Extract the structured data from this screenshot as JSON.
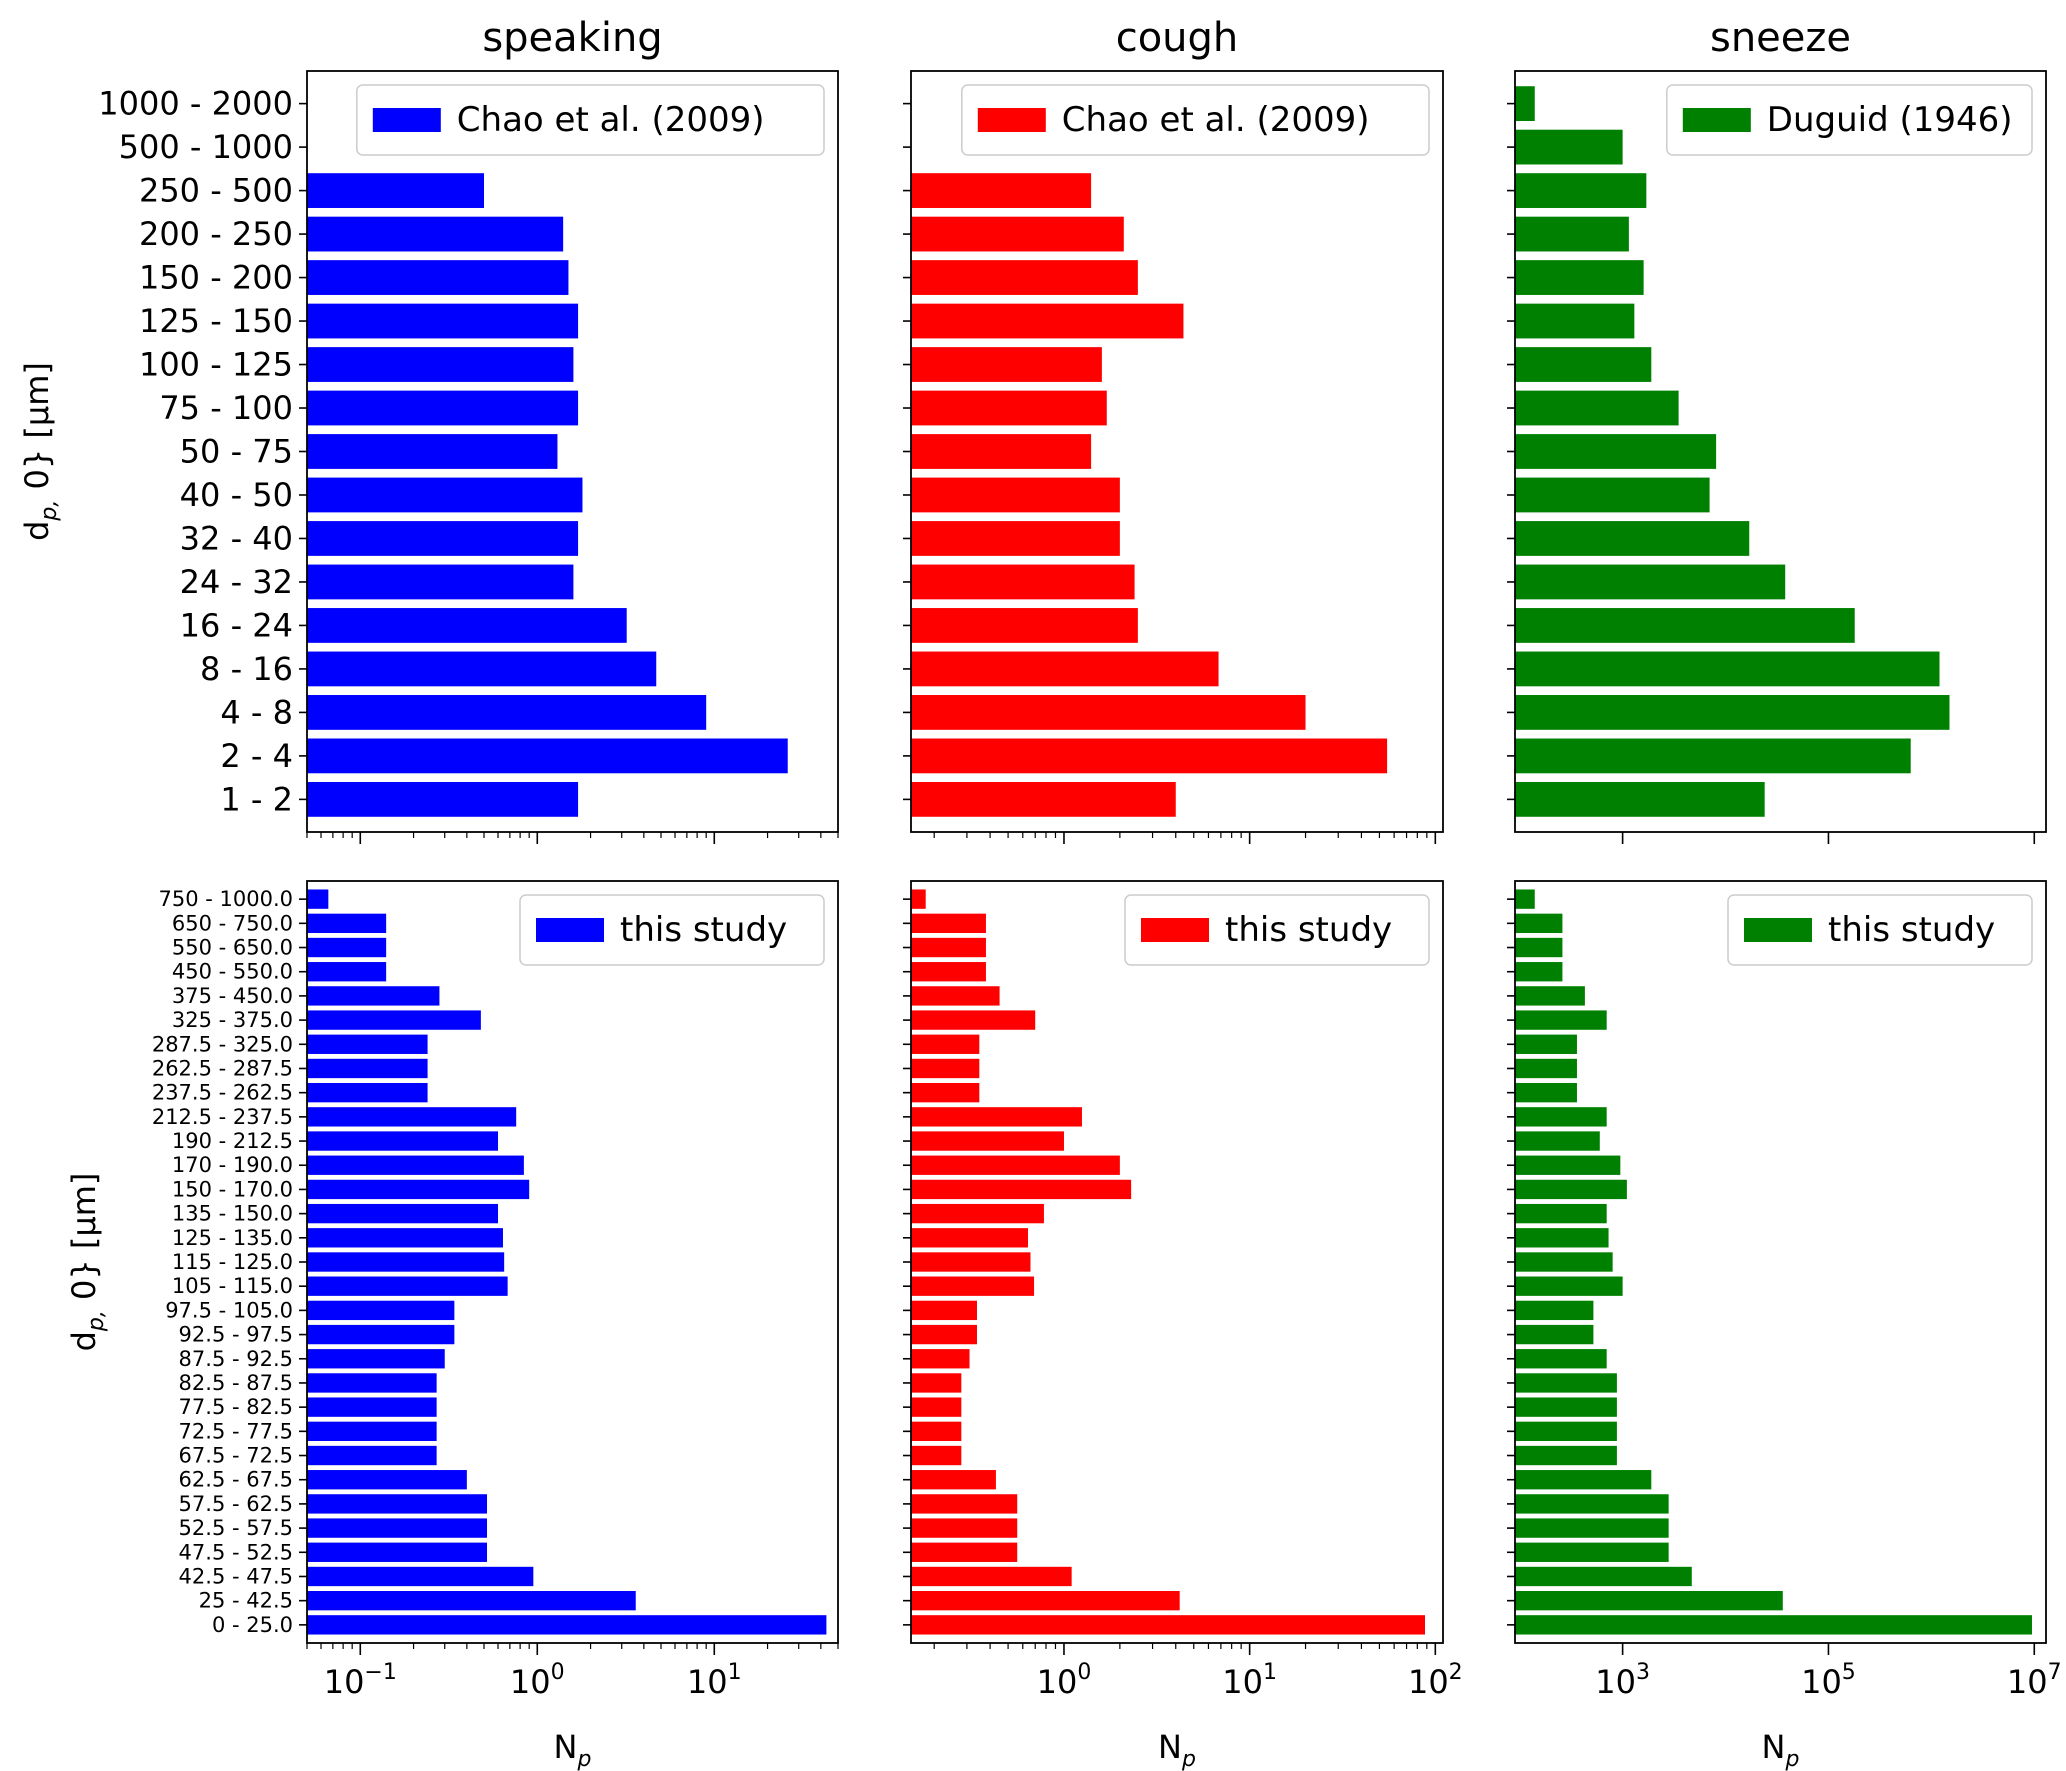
{
  "chart_data": [
    {
      "type": "bar",
      "orientation": "horizontal",
      "title": "speaking",
      "xscale": "log",
      "xlim": [
        0.05,
        50
      ],
      "xticks": [],
      "xlabel": "",
      "ylabel": "d_{p, 0} [μm]",
      "categories": [
        "1 - 2",
        "2 - 4",
        "4 - 8",
        "8 - 16",
        "16 - 24",
        "24 - 32",
        "32 - 40",
        "40 - 50",
        "50 - 75",
        "75 - 100",
        "100 - 125",
        "125 - 150",
        "150 - 200",
        "200 - 250",
        "250 - 500",
        "500 - 1000",
        "1000 - 2000"
      ],
      "series": [
        {
          "name": "Chao et al. (2009)",
          "color": "#0000ff",
          "values": [
            1.7,
            26,
            9,
            4.7,
            3.2,
            1.6,
            1.7,
            1.8,
            1.3,
            1.7,
            1.6,
            1.7,
            1.5,
            1.4,
            0.5,
            0,
            0
          ]
        }
      ],
      "legend_position": "top-right"
    },
    {
      "type": "bar",
      "orientation": "horizontal",
      "title": "cough",
      "xscale": "log",
      "xlim": [
        0.15,
        110
      ],
      "xticks": [],
      "xlabel": "",
      "ylabel": "",
      "categories": [
        "1 - 2",
        "2 - 4",
        "4 - 8",
        "8 - 16",
        "16 - 24",
        "24 - 32",
        "32 - 40",
        "40 - 50",
        "50 - 75",
        "75 - 100",
        "100 - 125",
        "125 - 150",
        "150 - 200",
        "200 - 250",
        "250 - 500",
        "500 - 1000",
        "1000 - 2000"
      ],
      "series": [
        {
          "name": "Chao et al. (2009)",
          "color": "#ff0000",
          "values": [
            4,
            55,
            20,
            6.8,
            2.5,
            2.4,
            2,
            2,
            1.4,
            1.7,
            1.6,
            4.4,
            2.5,
            2.1,
            1.4,
            0,
            0
          ]
        }
      ],
      "legend_position": "top-right"
    },
    {
      "type": "bar",
      "orientation": "horizontal",
      "title": "sneeze",
      "xscale": "log",
      "xlim": [
        90,
        13000000
      ],
      "xticks": [],
      "xlabel": "",
      "ylabel": "",
      "categories": [
        "1 - 2",
        "2 - 4",
        "4 - 8",
        "8 - 16",
        "16 - 24",
        "24 - 32",
        "32 - 40",
        "40 - 50",
        "50 - 75",
        "75 - 100",
        "100 - 125",
        "125 - 150",
        "150 - 200",
        "200 - 250",
        "250 - 500",
        "500 - 1000",
        "1000 - 2000"
      ],
      "series": [
        {
          "name": "Duguid (1946)",
          "color": "#008000",
          "values": [
            24000,
            630000,
            1500000,
            1200000,
            180000,
            38000,
            17000,
            7000,
            8100,
            3500,
            1900,
            1300,
            1600,
            1150,
            1700,
            1000,
            140
          ]
        }
      ],
      "legend_position": "top-right"
    },
    {
      "type": "bar",
      "orientation": "horizontal",
      "title": "",
      "xscale": "log",
      "xlim": [
        0.05,
        50
      ],
      "xticks": [
        "10^-1",
        "10^0",
        "10^1"
      ],
      "xlabel": "N_p",
      "ylabel": "d_{p, 0} [μm]",
      "categories": [
        "0 - 25.0",
        "25 - 42.5",
        "42.5 - 47.5",
        "47.5 - 52.5",
        "52.5 - 57.5",
        "57.5 - 62.5",
        "62.5 - 67.5",
        "67.5 - 72.5",
        "72.5 - 77.5",
        "77.5 - 82.5",
        "82.5 - 87.5",
        "87.5 - 92.5",
        "92.5 - 97.5",
        "97.5 - 105.0",
        "105 - 115.0",
        "115 - 125.0",
        "125 - 135.0",
        "135 - 150.0",
        "150 - 170.0",
        "170 - 190.0",
        "190 - 212.5",
        "212.5 - 237.5",
        "237.5 - 262.5",
        "262.5 - 287.5",
        "287.5 - 325.0",
        "325 - 375.0",
        "375 - 450.0",
        "450 - 550.0",
        "550 - 650.0",
        "650 - 750.0",
        "750 - 1000.0"
      ],
      "series": [
        {
          "name": "this study",
          "color": "#0000ff",
          "values": [
            43,
            3.6,
            0.95,
            0.52,
            0.52,
            0.52,
            0.4,
            0.27,
            0.27,
            0.27,
            0.27,
            0.3,
            0.34,
            0.34,
            0.68,
            0.65,
            0.64,
            0.6,
            0.9,
            0.84,
            0.6,
            0.76,
            0.24,
            0.24,
            0.24,
            0.48,
            0.28,
            0.14,
            0.14,
            0.14,
            0.066
          ]
        }
      ],
      "legend_position": "top-right"
    },
    {
      "type": "bar",
      "orientation": "horizontal",
      "title": "",
      "xscale": "log",
      "xlim": [
        0.15,
        110
      ],
      "xticks": [
        "10^0",
        "10^1",
        "10^2"
      ],
      "xlabel": "N_p",
      "ylabel": "",
      "categories": [
        "0 - 25.0",
        "25 - 42.5",
        "42.5 - 47.5",
        "47.5 - 52.5",
        "52.5 - 57.5",
        "57.5 - 62.5",
        "62.5 - 67.5",
        "67.5 - 72.5",
        "72.5 - 77.5",
        "77.5 - 82.5",
        "82.5 - 87.5",
        "87.5 - 92.5",
        "92.5 - 97.5",
        "97.5 - 105.0",
        "105 - 115.0",
        "115 - 125.0",
        "125 - 135.0",
        "135 - 150.0",
        "150 - 170.0",
        "170 - 190.0",
        "190 - 212.5",
        "212.5 - 237.5",
        "237.5 - 262.5",
        "262.5 - 287.5",
        "287.5 - 325.0",
        "325 - 375.0",
        "375 - 450.0",
        "450 - 550.0",
        "550 - 650.0",
        "650 - 750.0",
        "750 - 1000.0"
      ],
      "series": [
        {
          "name": "this study",
          "color": "#ff0000",
          "values": [
            88,
            4.2,
            1.1,
            0.56,
            0.56,
            0.56,
            0.43,
            0.28,
            0.28,
            0.28,
            0.28,
            0.31,
            0.34,
            0.34,
            0.69,
            0.66,
            0.64,
            0.78,
            2.3,
            2.0,
            1.0,
            1.25,
            0.35,
            0.35,
            0.35,
            0.7,
            0.45,
            0.38,
            0.38,
            0.38,
            0.18
          ]
        }
      ],
      "legend_position": "top-right"
    },
    {
      "type": "bar",
      "orientation": "horizontal",
      "title": "",
      "xscale": "log",
      "xlim": [
        90,
        13000000
      ],
      "xticks": [
        "10^3",
        "10^5"
      ],
      "xlabel": "N_p",
      "ylabel": "",
      "categories": [
        "0 - 25.0",
        "25 - 42.5",
        "42.5 - 47.5",
        "47.5 - 52.5",
        "52.5 - 57.5",
        "57.5 - 62.5",
        "62.5 - 67.5",
        "67.5 - 72.5",
        "72.5 - 77.5",
        "77.5 - 82.5",
        "82.5 - 87.5",
        "87.5 - 92.5",
        "92.5 - 97.5",
        "97.5 - 105.0",
        "105 - 115.0",
        "115 - 125.0",
        "125 - 135.0",
        "135 - 150.0",
        "150 - 170.0",
        "170 - 190.0",
        "190 - 212.5",
        "212.5 - 237.5",
        "237.5 - 262.5",
        "262.5 - 287.5",
        "287.5 - 325.0",
        "325 - 375.0",
        "375 - 450.0",
        "450 - 550.0",
        "550 - 650.0",
        "650 - 750.0",
        "750 - 1000.0"
      ],
      "series": [
        {
          "name": "this study",
          "color": "#008000",
          "values": [
            9500000,
            36000,
            4700,
            2800,
            2800,
            2800,
            1900,
            880,
            880,
            880,
            880,
            700,
            520,
            520,
            1000,
            800,
            730,
            700,
            1100,
            950,
            600,
            700,
            360,
            360,
            360,
            700,
            430,
            260,
            260,
            260,
            140
          ]
        }
      ],
      "legend_position": "top-right"
    }
  ]
}
